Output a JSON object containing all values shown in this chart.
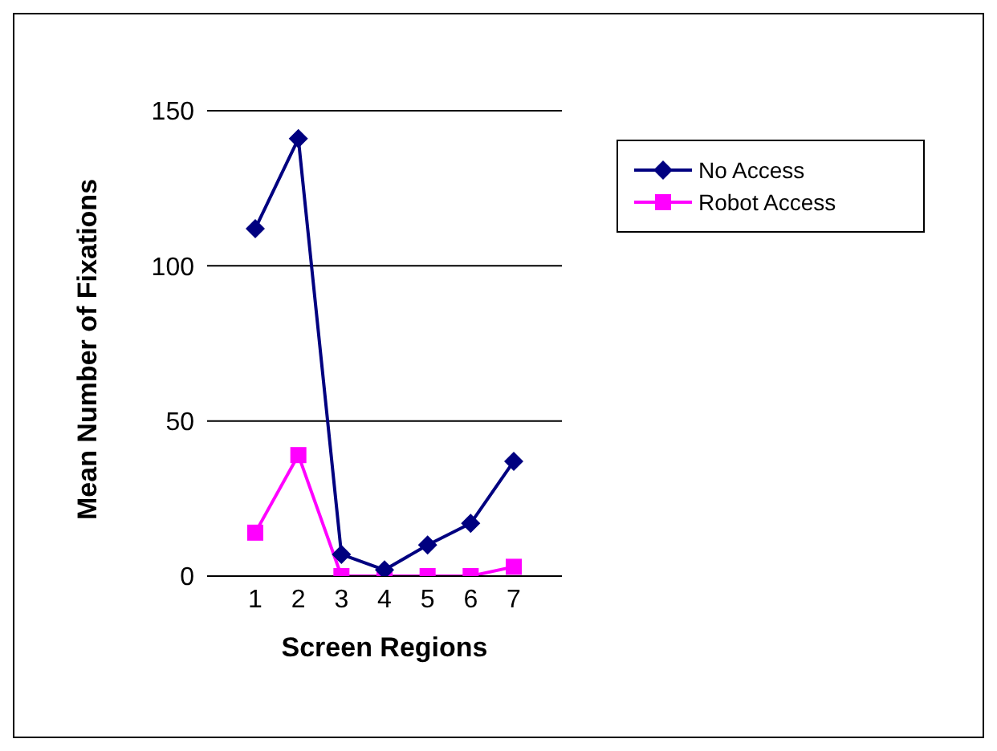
{
  "chart_data": {
    "type": "line",
    "xlabel": "Screen Regions",
    "ylabel": "Mean Number of Fixations",
    "categories": [
      "1",
      "2",
      "3",
      "4",
      "5",
      "6",
      "7"
    ],
    "series": [
      {
        "name": "No Access",
        "color": "#000080",
        "marker": "diamond",
        "values": [
          112,
          141,
          7,
          2,
          10,
          17,
          37
        ]
      },
      {
        "name": "Robot Access",
        "color": "#ff00ff",
        "marker": "square",
        "values": [
          14,
          39,
          0,
          0,
          0,
          0,
          3
        ]
      }
    ],
    "ylim": [
      0,
      150
    ],
    "yticks": [
      0,
      50,
      100,
      150
    ],
    "grid": "y",
    "legend": "top right"
  }
}
